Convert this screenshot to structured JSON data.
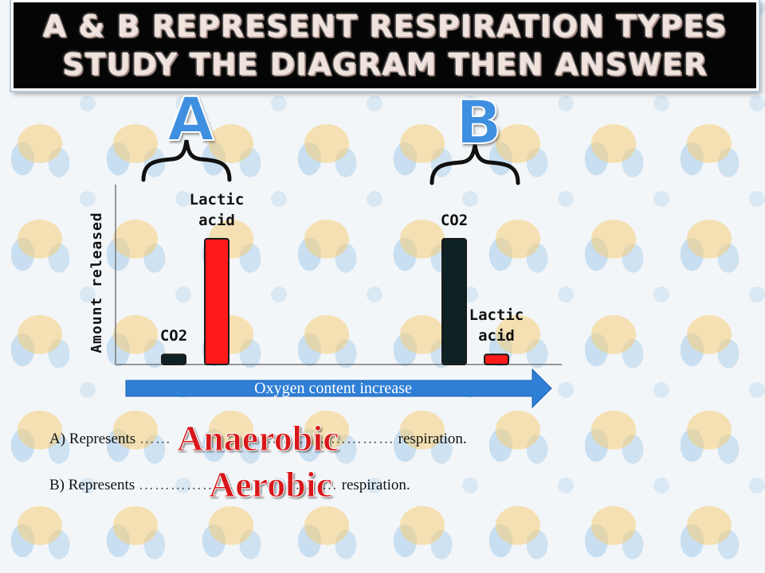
{
  "slide": {
    "title_lines": [
      "A & B REPRESENT RESPIRATION TYPES",
      "STUDY THE DIAGRAM THEN ANSWER"
    ],
    "group_labels": [
      "A",
      "B"
    ]
  },
  "chart_data": {
    "type": "bar",
    "ylabel": "Amount released",
    "xlabel": "Oxygen content increase",
    "y_ticks": "none",
    "ylim": [
      0,
      100
    ],
    "groups": [
      {
        "name": "A",
        "bars": [
          {
            "label": "CO2",
            "value": 8,
            "color": "#0e2226"
          },
          {
            "label": "Lactic acid",
            "value": 100,
            "color": "#ff1a1a"
          }
        ]
      },
      {
        "name": "B",
        "bars": [
          {
            "label": "CO2",
            "value": 100,
            "color": "#0e2226"
          },
          {
            "label": "Lactic acid",
            "value": 8,
            "color": "#ff1a1a"
          }
        ]
      }
    ],
    "grid": false,
    "legend": "none"
  },
  "answers": [
    {
      "prefix": "A)  Represents",
      "dots_left": "……",
      "dots_right": "……………………",
      "suffix": "respiration.",
      "answer": "Anaerobic"
    },
    {
      "prefix": "B)  Represents",
      "dots_left": "………………",
      "dots_right": "………",
      "suffix": "respiration.",
      "answer": "Aerobic"
    }
  ],
  "colors": {
    "accent_blue": "#2f7fd6",
    "answer_red": "#d8171a",
    "banner_bg": "#050505"
  }
}
